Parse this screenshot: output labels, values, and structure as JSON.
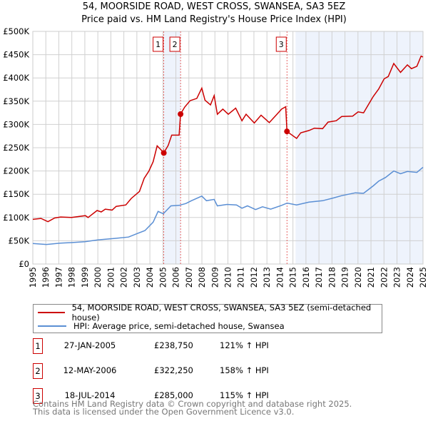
{
  "title_line1": "54, MOORSIDE ROAD, WEST CROSS, SWANSEA, SA3 5EZ",
  "title_line2": "Price paid vs. HM Land Registry's House Price Index (HPI)",
  "chart_data": {
    "type": "line",
    "title": "54, MOORSIDE ROAD, WEST CROSS, SWANSEA, SA3 5EZ — Price paid vs. HM Land Registry's House Price Index (HPI)",
    "xlabel": "",
    "ylabel": "",
    "xlim": [
      1995,
      2025
    ],
    "ylim": [
      0,
      500000
    ],
    "x_ticks": [
      "1995",
      "1996",
      "1997",
      "1998",
      "1999",
      "2000",
      "2001",
      "2002",
      "2003",
      "2004",
      "2005",
      "2006",
      "2007",
      "2008",
      "2009",
      "2010",
      "2011",
      "2012",
      "2013",
      "2014",
      "2015",
      "2016",
      "2017",
      "2018",
      "2019",
      "2020",
      "2021",
      "2022",
      "2023",
      "2024",
      "2025"
    ],
    "y_ticks": [
      {
        "v": 0,
        "label": "£0"
      },
      {
        "v": 50000,
        "label": "£50K"
      },
      {
        "v": 100000,
        "label": "£100K"
      },
      {
        "v": 150000,
        "label": "£150K"
      },
      {
        "v": 200000,
        "label": "£200K"
      },
      {
        "v": 250000,
        "label": "£250K"
      },
      {
        "v": 300000,
        "label": "£300K"
      },
      {
        "v": 350000,
        "label": "£350K"
      },
      {
        "v": 400000,
        "label": "£400K"
      },
      {
        "v": 450000,
        "label": "£450K"
      },
      {
        "v": 500000,
        "label": "£500K"
      }
    ],
    "grid": true,
    "shaded_ranges": [
      [
        2005.07,
        2006.36
      ],
      [
        2015.2,
        2025
      ]
    ],
    "series": [
      {
        "name": "54, MOORSIDE ROAD, WEST CROSS, SWANSEA, SA3 5EZ (semi-detached house)",
        "color": "#cc0000",
        "points": [
          [
            1995.0,
            96
          ],
          [
            1995.63,
            98
          ],
          [
            1996.16,
            91
          ],
          [
            1996.68,
            99
          ],
          [
            1997.14,
            101
          ],
          [
            1997.98,
            100
          ],
          [
            1999.04,
            104
          ],
          [
            1999.25,
            100
          ],
          [
            1999.94,
            115
          ],
          [
            2000.26,
            112
          ],
          [
            2000.57,
            118
          ],
          [
            2001.1,
            116
          ],
          [
            2001.41,
            124
          ],
          [
            2002.15,
            127
          ],
          [
            2002.57,
            141
          ],
          [
            2003.2,
            156
          ],
          [
            2003.56,
            184
          ],
          [
            2003.93,
            200
          ],
          [
            2004.25,
            220
          ],
          [
            2004.56,
            254
          ],
          [
            2004.84,
            246
          ],
          [
            2005.07,
            238.75
          ],
          [
            2005.41,
            255
          ],
          [
            2005.68,
            277
          ],
          [
            2006.25,
            277
          ],
          [
            2006.36,
            322.25
          ],
          [
            2006.67,
            337
          ],
          [
            2007.09,
            351
          ],
          [
            2007.61,
            356
          ],
          [
            2007.99,
            378
          ],
          [
            2008.24,
            352
          ],
          [
            2008.66,
            342
          ],
          [
            2008.94,
            362
          ],
          [
            2009.19,
            322
          ],
          [
            2009.61,
            333
          ],
          [
            2010.03,
            322
          ],
          [
            2010.6,
            335
          ],
          [
            2011.08,
            308
          ],
          [
            2011.4,
            322
          ],
          [
            2012.03,
            303
          ],
          [
            2012.55,
            320
          ],
          [
            2013.18,
            304
          ],
          [
            2013.71,
            320
          ],
          [
            2014.13,
            333
          ],
          [
            2014.44,
            338
          ],
          [
            2014.54,
            285
          ],
          [
            2015.28,
            270
          ],
          [
            2015.6,
            282
          ],
          [
            2016.23,
            287
          ],
          [
            2016.65,
            292
          ],
          [
            2017.28,
            291
          ],
          [
            2017.7,
            305
          ],
          [
            2018.33,
            308
          ],
          [
            2018.75,
            317
          ],
          [
            2019.59,
            318
          ],
          [
            2020.01,
            327
          ],
          [
            2020.43,
            325
          ],
          [
            2020.75,
            340
          ],
          [
            2021.17,
            360
          ],
          [
            2021.59,
            376
          ],
          [
            2022.01,
            398
          ],
          [
            2022.33,
            403
          ],
          [
            2022.75,
            431
          ],
          [
            2023.27,
            412
          ],
          [
            2023.8,
            428
          ],
          [
            2024.11,
            420
          ],
          [
            2024.53,
            425
          ],
          [
            2024.85,
            447
          ],
          [
            2025.0,
            445
          ]
        ]
      },
      {
        "name": "HPI: Average price, semi-detached house, Swansea",
        "color": "#5b8fd4",
        "points": [
          [
            1995.0,
            44
          ],
          [
            1996.05,
            42
          ],
          [
            1997.1,
            45
          ],
          [
            1997.94,
            46
          ],
          [
            1999.0,
            48
          ],
          [
            2000.04,
            52
          ],
          [
            2001.3,
            55
          ],
          [
            2002.36,
            58
          ],
          [
            2002.99,
            65
          ],
          [
            2003.62,
            72
          ],
          [
            2004.25,
            90
          ],
          [
            2004.63,
            113
          ],
          [
            2005.03,
            108
          ],
          [
            2005.62,
            125
          ],
          [
            2006.25,
            126
          ],
          [
            2006.77,
            130
          ],
          [
            2007.19,
            136
          ],
          [
            2007.99,
            146
          ],
          [
            2008.35,
            136
          ],
          [
            2008.94,
            139
          ],
          [
            2009.19,
            125
          ],
          [
            2009.93,
            128
          ],
          [
            2010.66,
            127
          ],
          [
            2011.08,
            120
          ],
          [
            2011.5,
            125
          ],
          [
            2012.13,
            117
          ],
          [
            2012.66,
            123
          ],
          [
            2013.29,
            118
          ],
          [
            2014.13,
            126
          ],
          [
            2014.55,
            131
          ],
          [
            2015.28,
            127
          ],
          [
            2016.23,
            133
          ],
          [
            2017.28,
            136
          ],
          [
            2018.12,
            142
          ],
          [
            2018.75,
            147
          ],
          [
            2019.8,
            153
          ],
          [
            2020.43,
            152
          ],
          [
            2021.17,
            168
          ],
          [
            2021.59,
            178
          ],
          [
            2022.12,
            186
          ],
          [
            2022.75,
            200
          ],
          [
            2023.27,
            194
          ],
          [
            2023.8,
            199
          ],
          [
            2024.53,
            197
          ],
          [
            2025.0,
            208
          ]
        ]
      }
    ],
    "value_units": "thousands GBP",
    "sales": [
      {
        "num": "1",
        "year": 2005.07,
        "value": 238750
      },
      {
        "num": "2",
        "year": 2006.36,
        "value": 322250
      },
      {
        "num": "3",
        "year": 2014.54,
        "value": 285000
      }
    ]
  },
  "legend": {
    "property": "54, MOORSIDE ROAD, WEST CROSS, SWANSEA, SA3 5EZ (semi-detached house)",
    "hpi": "HPI: Average price, semi-detached house, Swansea"
  },
  "sales_table": [
    {
      "num": "1",
      "date": "27-JAN-2005",
      "price": "£238,750",
      "hpi": "121% ↑ HPI"
    },
    {
      "num": "2",
      "date": "12-MAY-2006",
      "price": "£322,250",
      "hpi": "158% ↑ HPI"
    },
    {
      "num": "3",
      "date": "18-JUL-2014",
      "price": "£285,000",
      "hpi": "115% ↑ HPI"
    }
  ],
  "footer": {
    "line1": "Contains HM Land Registry data © Crown copyright and database right 2025.",
    "line2": "This data is licensed under the Open Government Licence v3.0."
  }
}
